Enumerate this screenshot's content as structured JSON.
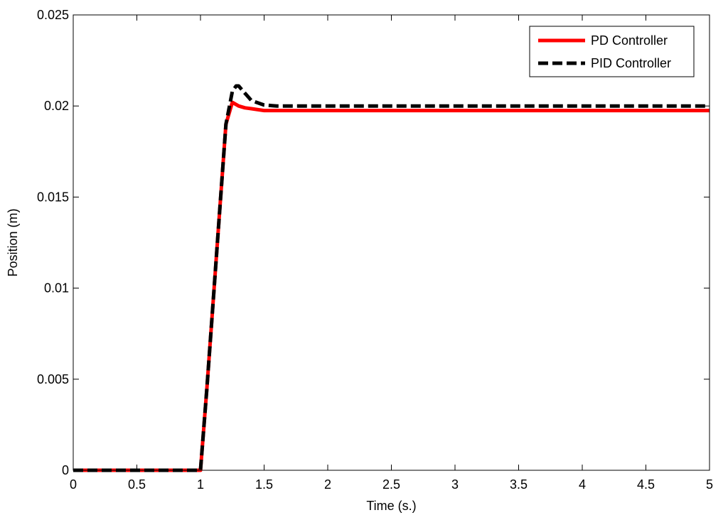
{
  "chart_data": {
    "type": "line",
    "title": "",
    "xlabel": "Time (s.)",
    "ylabel": "Position (m)",
    "xlim": [
      0,
      5
    ],
    "ylim": [
      0,
      0.025
    ],
    "xticks": [
      0,
      0.5,
      1,
      1.5,
      2,
      2.5,
      3,
      3.5,
      4,
      4.5,
      5
    ],
    "xtick_labels": [
      "0",
      "0.5",
      "1",
      "1.5",
      "2",
      "2.5",
      "3",
      "3.5",
      "4",
      "4.5",
      "5"
    ],
    "yticks": [
      0,
      0.005,
      0.01,
      0.015,
      0.02,
      0.025
    ],
    "ytick_labels": [
      "0",
      "0.005",
      "0.01",
      "0.015",
      "0.02",
      "0.025"
    ],
    "grid": false,
    "legend_position": "top-right",
    "series": [
      {
        "name": "PD Controller",
        "color": "#ff0000",
        "style": "solid",
        "x": [
          0,
          1.0,
          1.05,
          1.1,
          1.15,
          1.2,
          1.25,
          1.3,
          1.35,
          1.4,
          1.5,
          2,
          3,
          4,
          5
        ],
        "y": [
          0,
          0,
          0.0045,
          0.0093,
          0.0142,
          0.019,
          0.0202,
          0.02,
          0.0199,
          0.01985,
          0.01975,
          0.01975,
          0.01975,
          0.01975,
          0.01975
        ]
      },
      {
        "name": "PID Controller",
        "color": "#000000",
        "style": "dashed",
        "x": [
          0,
          1.0,
          1.05,
          1.1,
          1.15,
          1.2,
          1.25,
          1.28,
          1.3,
          1.35,
          1.4,
          1.5,
          1.6,
          2,
          3,
          4,
          5
        ],
        "y": [
          0,
          0,
          0.0045,
          0.0093,
          0.0142,
          0.019,
          0.0208,
          0.0211,
          0.0211,
          0.0207,
          0.0203,
          0.02005,
          0.02,
          0.02,
          0.02,
          0.02,
          0.02
        ]
      }
    ]
  }
}
